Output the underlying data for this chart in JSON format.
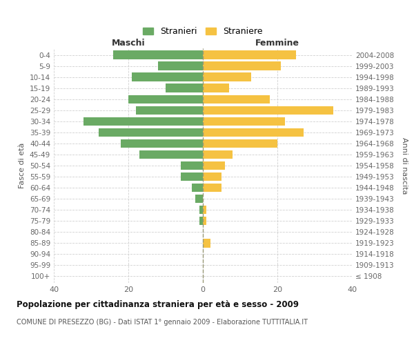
{
  "age_groups": [
    "100+",
    "95-99",
    "90-94",
    "85-89",
    "80-84",
    "75-79",
    "70-74",
    "65-69",
    "60-64",
    "55-59",
    "50-54",
    "45-49",
    "40-44",
    "35-39",
    "30-34",
    "25-29",
    "20-24",
    "15-19",
    "10-14",
    "5-9",
    "0-4"
  ],
  "birth_years": [
    "≤ 1908",
    "1909-1913",
    "1914-1918",
    "1919-1923",
    "1924-1928",
    "1929-1933",
    "1934-1938",
    "1939-1943",
    "1944-1948",
    "1949-1953",
    "1954-1958",
    "1959-1963",
    "1964-1968",
    "1969-1973",
    "1974-1978",
    "1979-1983",
    "1984-1988",
    "1989-1993",
    "1994-1998",
    "1999-2003",
    "2004-2008"
  ],
  "males": [
    0,
    0,
    0,
    0,
    0,
    1,
    1,
    2,
    3,
    6,
    6,
    17,
    22,
    28,
    32,
    18,
    20,
    10,
    19,
    12,
    24
  ],
  "females": [
    0,
    0,
    0,
    2,
    0,
    1,
    1,
    0,
    5,
    5,
    6,
    8,
    20,
    27,
    22,
    35,
    18,
    7,
    13,
    21,
    25
  ],
  "male_color": "#6aaa64",
  "female_color": "#f5c242",
  "male_label": "Stranieri",
  "female_label": "Straniere",
  "title": "Popolazione per cittadinanza straniera per età e sesso - 2009",
  "subtitle": "COMUNE DI PRESEZZO (BG) - Dati ISTAT 1° gennaio 2009 - Elaborazione TUTTITALIA.IT",
  "xlabel_left": "Maschi",
  "xlabel_right": "Femmine",
  "ylabel_left": "Fasce di età",
  "ylabel_right": "Anni di nascita",
  "xlim": 40,
  "background_color": "#ffffff",
  "grid_color": "#d0d0d0"
}
